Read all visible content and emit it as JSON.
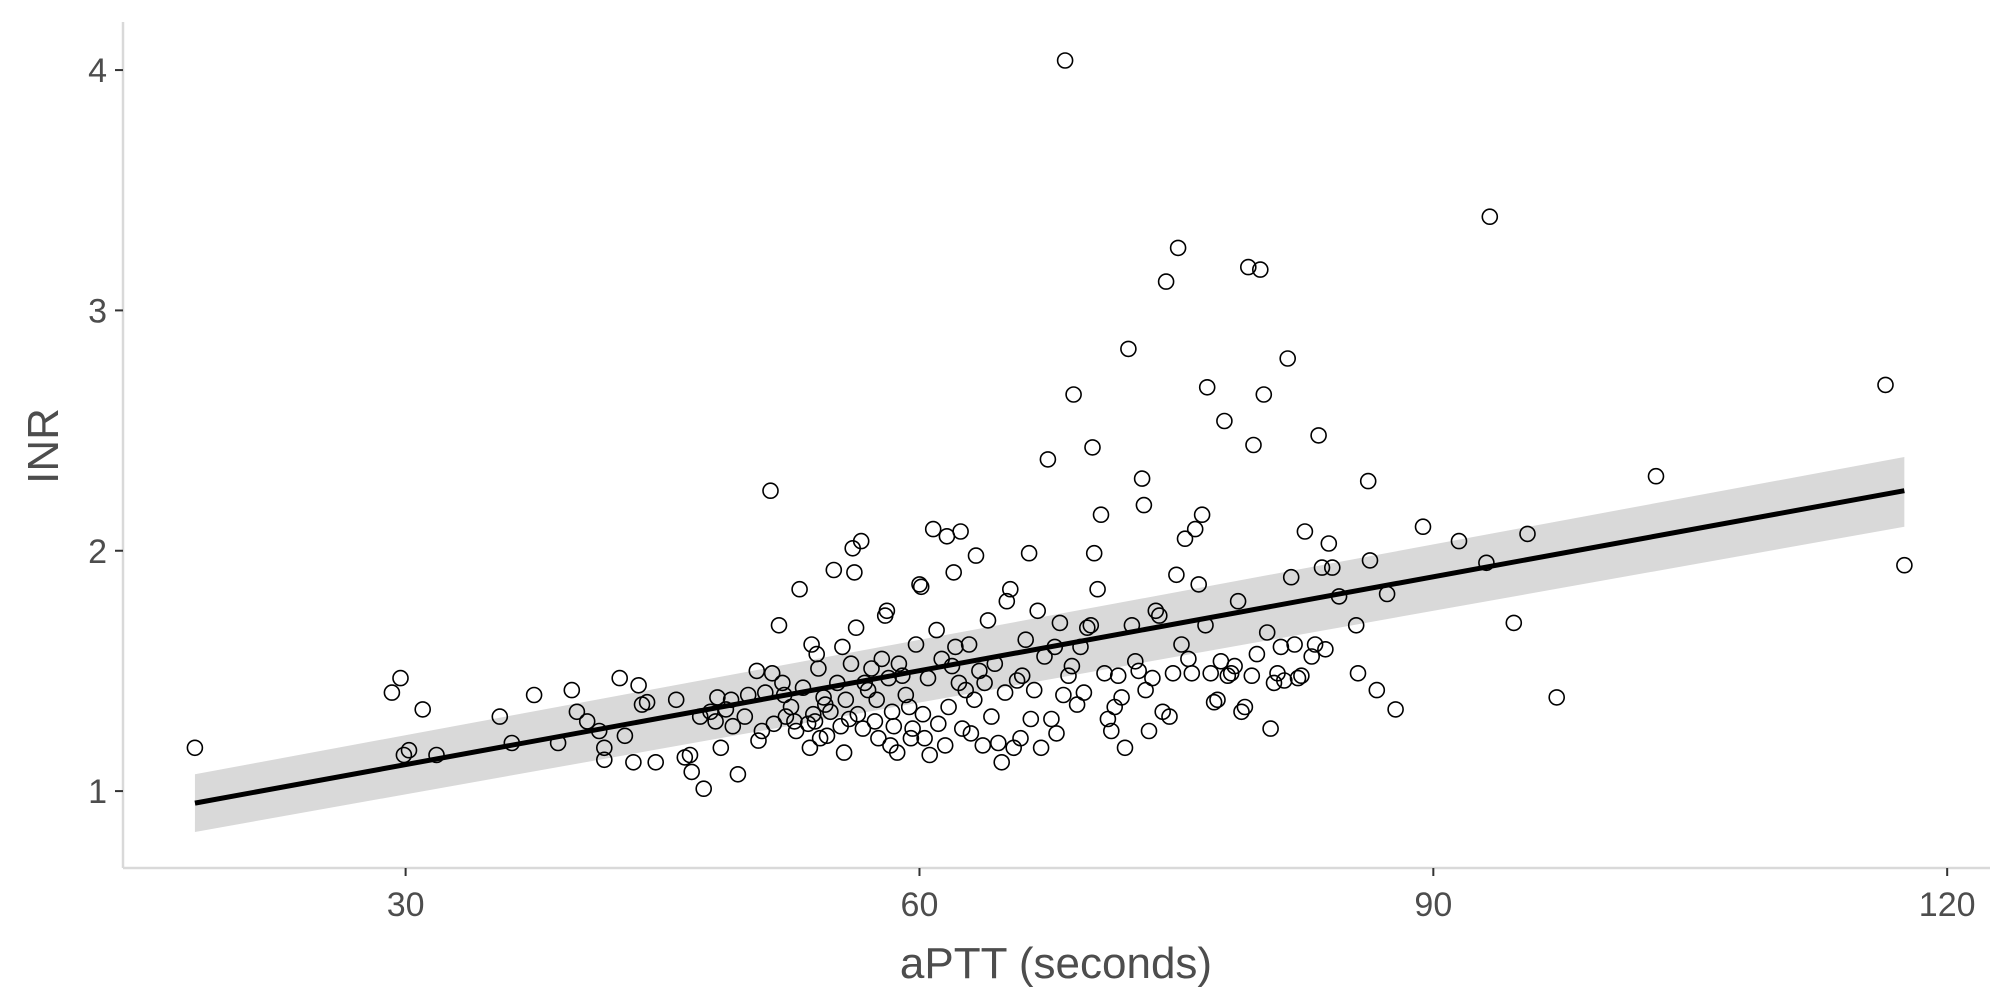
{
  "chart_data": {
    "type": "scatter",
    "xlabel": "aPTT (seconds)",
    "ylabel": "INR",
    "xlim": [
      13.5,
      122.5
    ],
    "ylim": [
      0.68,
      4.2
    ],
    "x_ticks": [
      30,
      60,
      90,
      120
    ],
    "y_ticks": [
      1,
      2,
      3,
      4
    ],
    "grid": false,
    "legend": "none",
    "colors": {
      "points": "#000000",
      "fit_line": "#000000",
      "confidence_band": "#d9d9d9",
      "axis": "#d9d9d9",
      "text": "#4d4d4d"
    },
    "fit": {
      "method": "linear",
      "x_range": [
        17.7,
        117.5
      ],
      "y_at_start": 0.95,
      "y_at_end": 2.25,
      "band_lower": [
        0.83,
        2.1
      ],
      "band_upper": [
        1.07,
        2.39
      ]
    },
    "points": [
      [
        17.7,
        1.18
      ],
      [
        29.2,
        1.41
      ],
      [
        29.7,
        1.47
      ],
      [
        29.9,
        1.15
      ],
      [
        30.2,
        1.17
      ],
      [
        31.0,
        1.34
      ],
      [
        31.8,
        1.15
      ],
      [
        35.5,
        1.31
      ],
      [
        36.2,
        1.2
      ],
      [
        37.5,
        1.4
      ],
      [
        38.9,
        1.2
      ],
      [
        39.7,
        1.42
      ],
      [
        40.0,
        1.33
      ],
      [
        40.6,
        1.29
      ],
      [
        41.3,
        1.25
      ],
      [
        41.6,
        1.18
      ],
      [
        41.6,
        1.13
      ],
      [
        42.5,
        1.47
      ],
      [
        42.8,
        1.23
      ],
      [
        43.3,
        1.12
      ],
      [
        43.6,
        1.44
      ],
      [
        43.8,
        1.36
      ],
      [
        44.1,
        1.37
      ],
      [
        44.6,
        1.12
      ],
      [
        45.8,
        1.38
      ],
      [
        46.3,
        1.14
      ],
      [
        46.6,
        1.15
      ],
      [
        46.7,
        1.08
      ],
      [
        47.2,
        1.31
      ],
      [
        47.4,
        1.01
      ],
      [
        47.8,
        1.33
      ],
      [
        48.1,
        1.29
      ],
      [
        48.2,
        1.39
      ],
      [
        48.4,
        1.18
      ],
      [
        48.7,
        1.34
      ],
      [
        49.0,
        1.38
      ],
      [
        49.1,
        1.27
      ],
      [
        49.4,
        1.07
      ],
      [
        49.8,
        1.31
      ],
      [
        50.0,
        1.4
      ],
      [
        50.5,
        1.5
      ],
      [
        50.6,
        1.21
      ],
      [
        50.8,
        1.25
      ],
      [
        51.0,
        1.41
      ],
      [
        51.3,
        2.25
      ],
      [
        51.4,
        1.49
      ],
      [
        51.5,
        1.28
      ],
      [
        51.8,
        1.69
      ],
      [
        52.0,
        1.45
      ],
      [
        52.1,
        1.4
      ],
      [
        52.2,
        1.31
      ],
      [
        52.5,
        1.35
      ],
      [
        52.7,
        1.29
      ],
      [
        52.8,
        1.25
      ],
      [
        53.0,
        1.84
      ],
      [
        53.2,
        1.43
      ],
      [
        53.5,
        1.28
      ],
      [
        53.6,
        1.18
      ],
      [
        53.7,
        1.61
      ],
      [
        53.8,
        1.32
      ],
      [
        53.9,
        1.29
      ],
      [
        54.0,
        1.57
      ],
      [
        54.1,
        1.51
      ],
      [
        54.2,
        1.22
      ],
      [
        54.4,
        1.39
      ],
      [
        54.5,
        1.36
      ],
      [
        54.6,
        1.23
      ],
      [
        54.8,
        1.33
      ],
      [
        55.0,
        1.92
      ],
      [
        55.2,
        1.45
      ],
      [
        55.4,
        1.27
      ],
      [
        55.5,
        1.6
      ],
      [
        55.6,
        1.16
      ],
      [
        55.7,
        1.38
      ],
      [
        55.9,
        1.3
      ],
      [
        56.0,
        1.53
      ],
      [
        56.1,
        2.01
      ],
      [
        56.2,
        1.91
      ],
      [
        56.3,
        1.68
      ],
      [
        56.4,
        1.32
      ],
      [
        56.6,
        2.04
      ],
      [
        56.7,
        1.26
      ],
      [
        56.8,
        1.45
      ],
      [
        57.0,
        1.42
      ],
      [
        57.2,
        1.51
      ],
      [
        57.4,
        1.29
      ],
      [
        57.5,
        1.38
      ],
      [
        57.6,
        1.22
      ],
      [
        57.8,
        1.55
      ],
      [
        58.0,
        1.73
      ],
      [
        58.1,
        1.75
      ],
      [
        58.2,
        1.47
      ],
      [
        58.3,
        1.19
      ],
      [
        58.4,
        1.33
      ],
      [
        58.5,
        1.27
      ],
      [
        58.7,
        1.16
      ],
      [
        58.8,
        1.53
      ],
      [
        59.0,
        1.48
      ],
      [
        59.2,
        1.4
      ],
      [
        59.4,
        1.35
      ],
      [
        59.5,
        1.22
      ],
      [
        59.6,
        1.26
      ],
      [
        59.8,
        1.61
      ],
      [
        60.0,
        1.86
      ],
      [
        60.1,
        1.85
      ],
      [
        60.2,
        1.32
      ],
      [
        60.3,
        1.22
      ],
      [
        60.5,
        1.47
      ],
      [
        60.6,
        1.15
      ],
      [
        60.8,
        2.09
      ],
      [
        61.0,
        1.67
      ],
      [
        61.1,
        1.28
      ],
      [
        61.3,
        1.55
      ],
      [
        61.5,
        1.19
      ],
      [
        61.6,
        2.06
      ],
      [
        61.7,
        1.35
      ],
      [
        61.9,
        1.52
      ],
      [
        62.0,
        1.91
      ],
      [
        62.1,
        1.6
      ],
      [
        62.3,
        1.45
      ],
      [
        62.4,
        2.08
      ],
      [
        62.5,
        1.26
      ],
      [
        62.7,
        1.42
      ],
      [
        62.9,
        1.61
      ],
      [
        63.0,
        1.24
      ],
      [
        63.2,
        1.38
      ],
      [
        63.3,
        1.98
      ],
      [
        63.5,
        1.5
      ],
      [
        63.7,
        1.19
      ],
      [
        63.8,
        1.45
      ],
      [
        64.0,
        1.71
      ],
      [
        64.2,
        1.31
      ],
      [
        64.4,
        1.53
      ],
      [
        64.6,
        1.2
      ],
      [
        64.8,
        1.12
      ],
      [
        65.0,
        1.41
      ],
      [
        65.1,
        1.79
      ],
      [
        65.3,
        1.84
      ],
      [
        65.5,
        1.18
      ],
      [
        65.7,
        1.46
      ],
      [
        65.9,
        1.22
      ],
      [
        66.0,
        1.48
      ],
      [
        66.2,
        1.63
      ],
      [
        66.4,
        1.99
      ],
      [
        66.5,
        1.3
      ],
      [
        66.7,
        1.42
      ],
      [
        66.9,
        1.75
      ],
      [
        67.1,
        1.18
      ],
      [
        67.3,
        1.56
      ],
      [
        67.5,
        2.38
      ],
      [
        67.7,
        1.3
      ],
      [
        67.9,
        1.6
      ],
      [
        68.0,
        1.24
      ],
      [
        68.2,
        1.7
      ],
      [
        68.4,
        1.4
      ],
      [
        68.5,
        4.04
      ],
      [
        68.7,
        1.48
      ],
      [
        68.9,
        1.52
      ],
      [
        69.0,
        2.65
      ],
      [
        69.2,
        1.36
      ],
      [
        69.4,
        1.6
      ],
      [
        69.6,
        1.41
      ],
      [
        69.8,
        1.68
      ],
      [
        70.0,
        1.69
      ],
      [
        70.1,
        2.43
      ],
      [
        70.2,
        1.99
      ],
      [
        70.4,
        1.84
      ],
      [
        70.6,
        2.15
      ],
      [
        70.8,
        1.49
      ],
      [
        71.0,
        1.3
      ],
      [
        71.2,
        1.25
      ],
      [
        71.4,
        1.35
      ],
      [
        71.6,
        1.48
      ],
      [
        71.8,
        1.39
      ],
      [
        72.0,
        1.18
      ],
      [
        72.2,
        2.84
      ],
      [
        72.4,
        1.69
      ],
      [
        72.6,
        1.54
      ],
      [
        72.8,
        1.5
      ],
      [
        73.0,
        2.3
      ],
      [
        73.1,
        2.19
      ],
      [
        73.2,
        1.42
      ],
      [
        73.4,
        1.25
      ],
      [
        73.6,
        1.47
      ],
      [
        73.8,
        1.75
      ],
      [
        74.0,
        1.73
      ],
      [
        74.2,
        1.33
      ],
      [
        74.4,
        3.12
      ],
      [
        74.6,
        1.31
      ],
      [
        74.8,
        1.49
      ],
      [
        75.0,
        1.9
      ],
      [
        75.1,
        3.26
      ],
      [
        75.3,
        1.61
      ],
      [
        75.5,
        2.05
      ],
      [
        75.7,
        1.55
      ],
      [
        75.9,
        1.49
      ],
      [
        76.1,
        2.09
      ],
      [
        76.3,
        1.86
      ],
      [
        76.5,
        2.15
      ],
      [
        76.7,
        1.69
      ],
      [
        76.8,
        2.68
      ],
      [
        77.0,
        1.49
      ],
      [
        77.2,
        1.37
      ],
      [
        77.4,
        1.38
      ],
      [
        77.6,
        1.54
      ],
      [
        77.8,
        2.54
      ],
      [
        78.0,
        1.48
      ],
      [
        78.2,
        1.49
      ],
      [
        78.4,
        1.52
      ],
      [
        78.6,
        1.79
      ],
      [
        78.8,
        1.33
      ],
      [
        79.0,
        1.35
      ],
      [
        79.2,
        3.18
      ],
      [
        79.4,
        1.48
      ],
      [
        79.5,
        2.44
      ],
      [
        79.7,
        1.57
      ],
      [
        79.9,
        3.17
      ],
      [
        80.1,
        2.65
      ],
      [
        80.3,
        1.66
      ],
      [
        80.5,
        1.26
      ],
      [
        80.7,
        1.45
      ],
      [
        80.9,
        1.49
      ],
      [
        81.1,
        1.6
      ],
      [
        81.3,
        1.46
      ],
      [
        81.5,
        2.8
      ],
      [
        81.7,
        1.89
      ],
      [
        81.9,
        1.61
      ],
      [
        82.1,
        1.47
      ],
      [
        82.3,
        1.48
      ],
      [
        82.5,
        2.08
      ],
      [
        82.9,
        1.56
      ],
      [
        83.1,
        1.61
      ],
      [
        83.3,
        2.48
      ],
      [
        83.5,
        1.93
      ],
      [
        83.7,
        1.59
      ],
      [
        83.9,
        2.03
      ],
      [
        84.1,
        1.93
      ],
      [
        84.5,
        1.81
      ],
      [
        85.5,
        1.69
      ],
      [
        85.6,
        1.49
      ],
      [
        86.2,
        2.29
      ],
      [
        86.3,
        1.96
      ],
      [
        86.7,
        1.42
      ],
      [
        87.3,
        1.82
      ],
      [
        87.8,
        1.34
      ],
      [
        89.4,
        2.1
      ],
      [
        91.5,
        2.04
      ],
      [
        93.1,
        1.95
      ],
      [
        93.3,
        3.39
      ],
      [
        94.7,
        1.7
      ],
      [
        95.5,
        2.07
      ],
      [
        97.2,
        1.39
      ],
      [
        103.0,
        2.31
      ],
      [
        116.4,
        2.69
      ],
      [
        117.5,
        1.94
      ]
    ]
  }
}
